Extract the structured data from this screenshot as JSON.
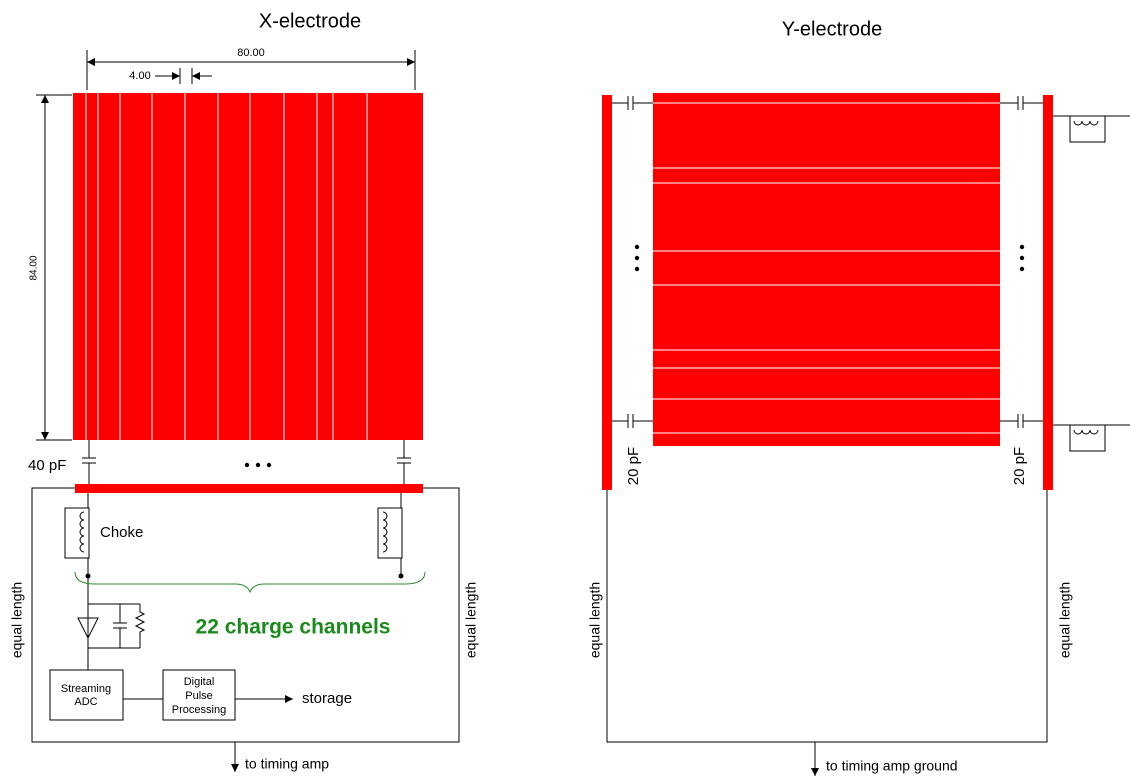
{
  "x_electrode": {
    "title": "X-electrode",
    "width_label": "80.00",
    "pitch_label": "4.00",
    "height_label": "84.00",
    "capacitance": "40 pF",
    "choke": "Choke",
    "channels": "22 charge channels",
    "equal_length": [
      "equal length",
      "equal length"
    ],
    "adc": [
      "Streaming",
      "ADC"
    ],
    "dpp": [
      "Digital",
      "Pulse",
      "Processing"
    ],
    "storage": "storage",
    "output": "to timing amp"
  },
  "y_electrode": {
    "title": "Y-electrode",
    "capacitance": [
      "20 pF",
      "20 pF"
    ],
    "equal_length": [
      "equal length",
      "equal length"
    ],
    "output": "to timing amp ground"
  }
}
